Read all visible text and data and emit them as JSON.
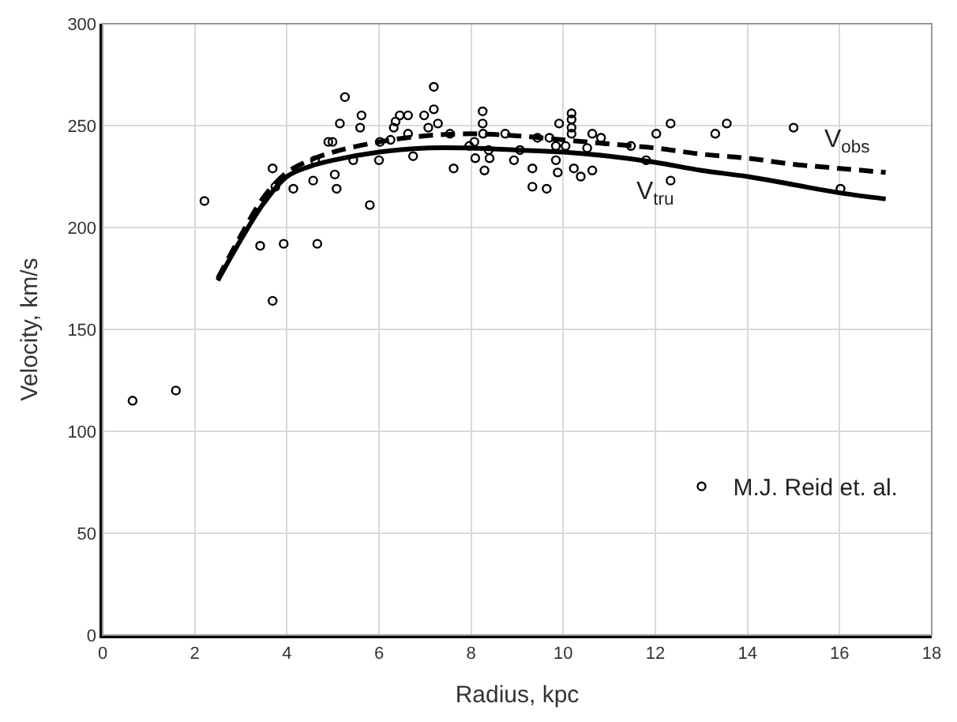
{
  "chart_data": {
    "type": "scatter",
    "xlabel": "Radius, kpc",
    "ylabel": "Velocity, km/s",
    "xlim": [
      0,
      18
    ],
    "xticks": [
      0,
      2,
      4,
      6,
      8,
      10,
      12,
      14,
      16,
      18
    ],
    "ylim": [
      0,
      300
    ],
    "yticks": [
      0,
      50,
      100,
      150,
      200,
      250,
      300
    ],
    "grid": true,
    "legend": "bottom right",
    "series": [
      {
        "name": "M.J. Reid et. al.",
        "marker": "circle",
        "color": "#000000",
        "x": [
          0.65,
          1.59,
          2.21,
          3.69,
          3.75,
          3.42,
          3.93,
          3.69,
          4.14,
          4.66,
          4.57,
          4.61,
          5.04,
          5.08,
          4.9,
          4.99,
          5.15,
          5.26,
          5.44,
          5.59,
          5.62,
          5.8,
          6.02,
          6.0,
          6.25,
          6.32,
          6.36,
          6.45,
          6.63,
          6.63,
          6.74,
          6.98,
          7.07,
          7.19,
          7.19,
          7.28,
          7.54,
          7.62,
          7.96,
          8.07,
          8.09,
          8.25,
          8.25,
          8.26,
          8.29,
          8.4,
          8.38,
          8.74,
          8.93,
          9.06,
          9.33,
          9.33,
          9.44,
          9.64,
          9.7,
          9.84,
          9.84,
          9.88,
          9.91,
          10.05,
          10.18,
          10.18,
          10.18,
          10.18,
          10.23,
          10.38,
          10.52,
          10.63,
          10.63,
          10.82,
          11.47,
          11.8,
          12.02,
          12.33,
          12.33,
          13.3,
          13.55,
          15.0,
          16.02
        ],
        "values": [
          115,
          120,
          213,
          229,
          220,
          191,
          192,
          164,
          219,
          192,
          223,
          233,
          226,
          219,
          242,
          242,
          251,
          264,
          233,
          249,
          255,
          211,
          242,
          233,
          243,
          249,
          252,
          255,
          255,
          246,
          235,
          255,
          249,
          258,
          269,
          251,
          246,
          229,
          240,
          242,
          234,
          257,
          251,
          246,
          228,
          234,
          238,
          246,
          233,
          238,
          229,
          220,
          244,
          219,
          244,
          240,
          233,
          227,
          251,
          240,
          256,
          253,
          249,
          246,
          229,
          225,
          239,
          246,
          228,
          244,
          240,
          233,
          246,
          251,
          223,
          246,
          251,
          249,
          219
        ]
      },
      {
        "name": "V$_{obs}$",
        "type": "line",
        "line_style": "dashed",
        "color": "#000000",
        "x": [
          2.5,
          3.0,
          3.5,
          4.0,
          4.5,
          5.0,
          6.0,
          7.0,
          8.0,
          9.0,
          10.0,
          11.0,
          12.0,
          13.0,
          14.0,
          15.0,
          16.0,
          17.0
        ],
        "values": [
          175,
          196,
          215,
          227,
          233,
          237,
          242,
          245,
          246,
          245,
          243,
          241,
          239,
          236,
          234,
          231,
          229,
          227
        ]
      },
      {
        "name": "V$_{tru}$",
        "type": "line",
        "line_style": "solid",
        "color": "#000000",
        "x": [
          2.5,
          3.0,
          3.5,
          4.0,
          4.5,
          5.0,
          6.0,
          7.0,
          8.0,
          9.0,
          10.0,
          11.0,
          12.0,
          13.0,
          14.0,
          15.0,
          16.0,
          17.0
        ],
        "values": [
          174,
          194,
          212,
          225,
          230,
          233,
          237,
          239,
          239,
          238,
          237,
          235,
          232,
          228,
          225,
          221,
          217,
          214
        ]
      }
    ]
  }
}
